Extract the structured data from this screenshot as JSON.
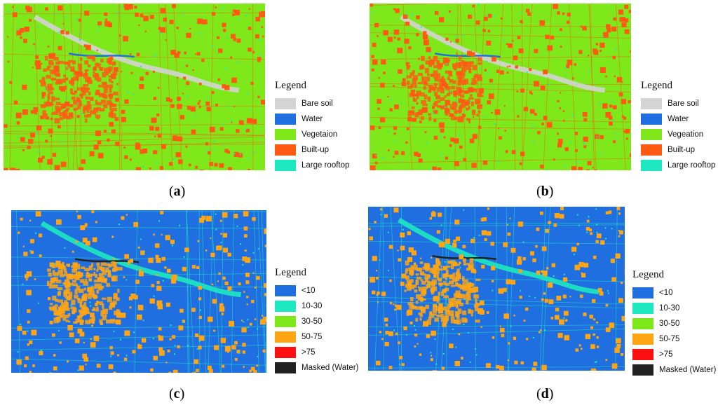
{
  "panels": [
    {
      "id": "a",
      "caption_open": "(",
      "caption_letter": "a",
      "caption_close": ")",
      "legend_title": "Legend",
      "legend": [
        {
          "label": "Bare soil",
          "color": "#d4d4d4"
        },
        {
          "label": "Water",
          "color": "#1f6fe0"
        },
        {
          "label": "Vegetaion",
          "color": "#7ee81a"
        },
        {
          "label": "Built-up",
          "color": "#ff5a14"
        },
        {
          "label": "Large rooftop",
          "color": "#1de8c0"
        }
      ],
      "map_type": "land-cover"
    },
    {
      "id": "b",
      "caption_open": "(",
      "caption_letter": "b",
      "caption_close": ")",
      "legend_title": "Legend",
      "legend": [
        {
          "label": "Bare soil",
          "color": "#d4d4d4"
        },
        {
          "label": "Water",
          "color": "#1f6fe0"
        },
        {
          "label": "Vegeation",
          "color": "#7ee81a"
        },
        {
          "label": "Built-up",
          "color": "#ff5a14"
        },
        {
          "label": "Large rooftop",
          "color": "#1de8c0"
        }
      ],
      "map_type": "land-cover"
    },
    {
      "id": "c",
      "caption_open": "(",
      "caption_letter": "c",
      "caption_close": ")",
      "legend_title": "Legend",
      "legend": [
        {
          "label": "<10",
          "color": "#1f6fe0"
        },
        {
          "label": "10-30",
          "color": "#1de8c0"
        },
        {
          "label": "30-50",
          "color": "#7ee81a"
        },
        {
          "label": "50-75",
          "color": "#ffa514"
        },
        {
          "label": ">75",
          "color": "#ff1010"
        },
        {
          "label": "Masked (Water)",
          "color": "#222222"
        }
      ],
      "map_type": "percentage"
    },
    {
      "id": "d",
      "caption_open": "(",
      "caption_letter": "d",
      "caption_close": ")",
      "legend_title": "Legend",
      "legend": [
        {
          "label": "<10",
          "color": "#1f6fe0"
        },
        {
          "label": "10-30",
          "color": "#1de8c0"
        },
        {
          "label": "30-50",
          "color": "#7ee81a"
        },
        {
          "label": "50-75",
          "color": "#ffa514"
        },
        {
          "label": ">75",
          "color": "#ff1010"
        },
        {
          "label": "Masked (Water)",
          "color": "#222222"
        }
      ],
      "map_type": "percentage"
    }
  ]
}
